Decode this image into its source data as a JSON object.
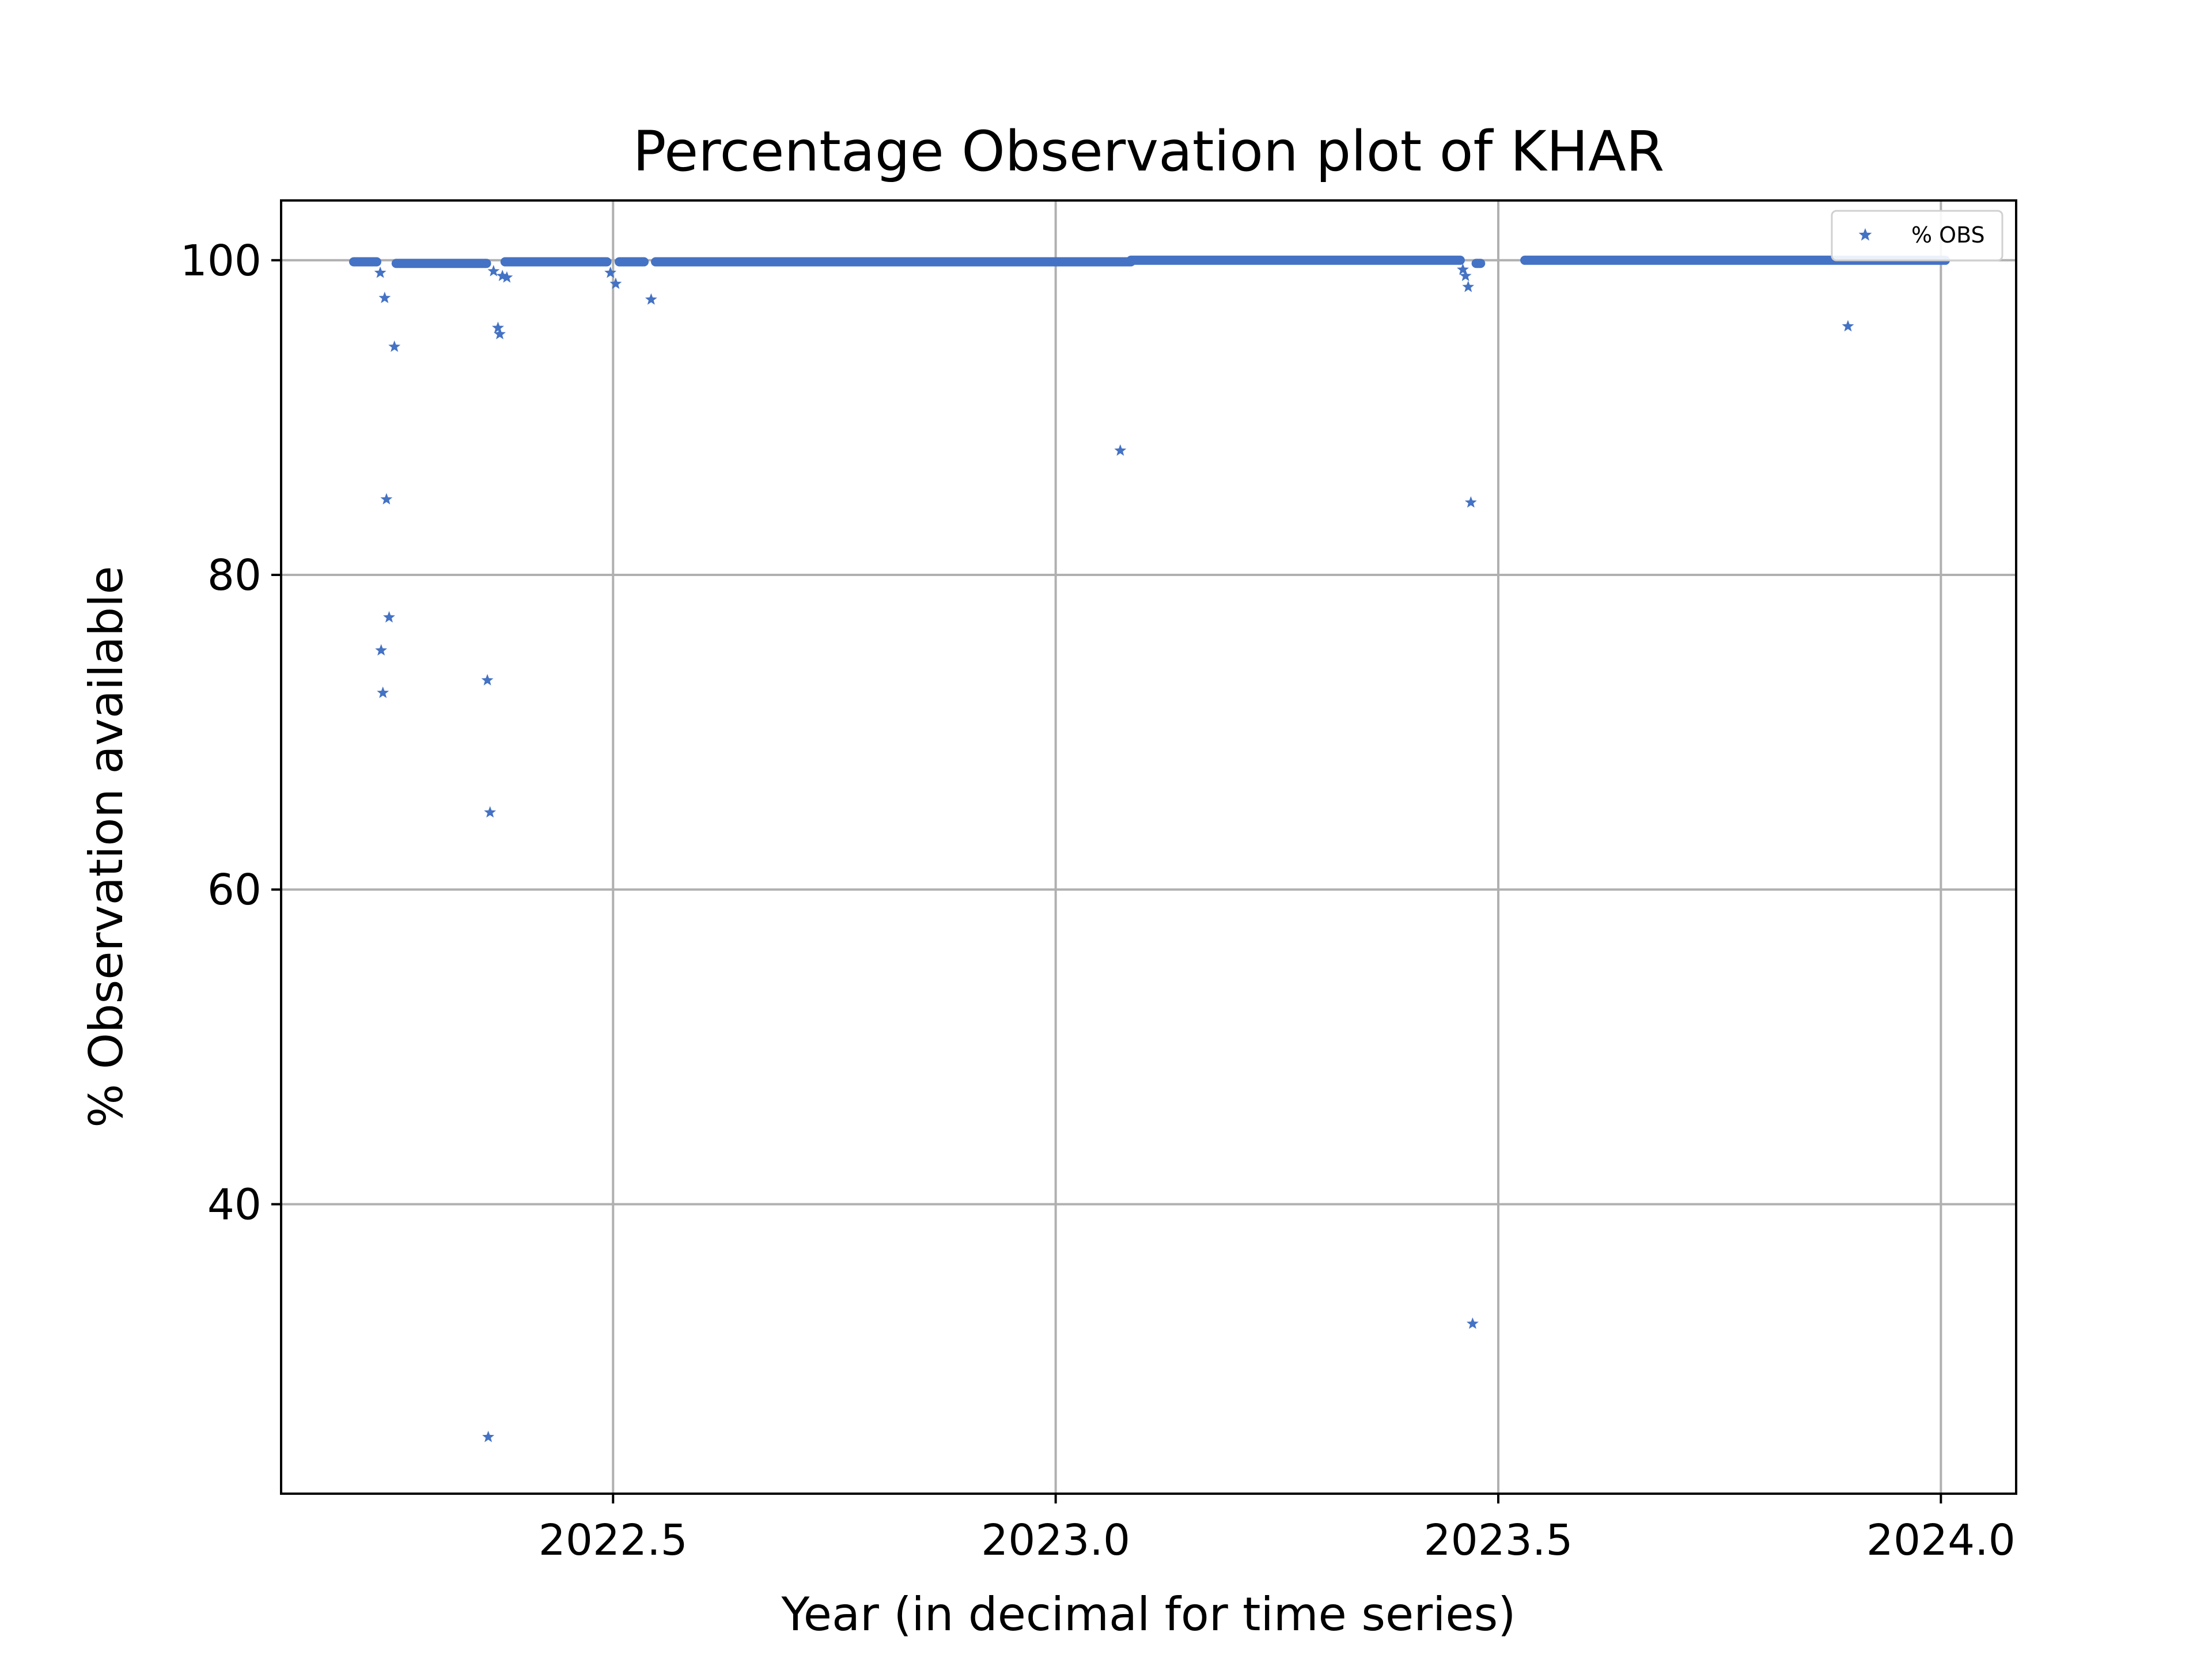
{
  "chart_data": {
    "type": "scatter",
    "title": "Percentage Observation plot of KHAR",
    "xlabel": "Year (in decimal for time series)",
    "ylabel": "% Observation available",
    "xlim": [
      2022.125,
      2024.085
    ],
    "ylim": [
      21.6,
      103.8
    ],
    "x_ticks": [
      2022.5,
      2023.0,
      2023.5,
      2024.0
    ],
    "x_tick_labels": [
      "2022.5",
      "2023.0",
      "2023.5",
      "2024.0"
    ],
    "y_ticks": [
      40,
      60,
      80,
      100
    ],
    "y_tick_labels": [
      "40",
      "60",
      "80",
      "100"
    ],
    "grid": true,
    "legend": {
      "position": "top-right",
      "entries": [
        "% OBS"
      ]
    },
    "series": [
      {
        "name": "% OBS",
        "color": "#4472c4",
        "marker": "star",
        "dense_segments": [
          {
            "x_start": 2022.207,
            "x_end": 2022.233,
            "y": 99.9
          },
          {
            "x_start": 2022.255,
            "x_end": 2022.357,
            "y": 99.8
          },
          {
            "x_start": 2022.378,
            "x_end": 2022.493,
            "y": 99.9
          },
          {
            "x_start": 2022.507,
            "x_end": 2022.535,
            "y": 99.9
          },
          {
            "x_start": 2022.548,
            "x_end": 2023.085,
            "y": 99.9
          },
          {
            "x_start": 2023.085,
            "x_end": 2023.457,
            "y": 100
          },
          {
            "x_start": 2023.475,
            "x_end": 2023.48,
            "y": 99.8
          },
          {
            "x_start": 2023.53,
            "x_end": 2024.005,
            "y": 100
          }
        ],
        "points": [
          {
            "x": 2022.237,
            "y": 99.2
          },
          {
            "x": 2022.242,
            "y": 97.6
          },
          {
            "x": 2022.253,
            "y": 94.5
          },
          {
            "x": 2022.244,
            "y": 84.8
          },
          {
            "x": 2022.247,
            "y": 77.3
          },
          {
            "x": 2022.238,
            "y": 75.2
          },
          {
            "x": 2022.24,
            "y": 72.5
          },
          {
            "x": 2022.358,
            "y": 73.3
          },
          {
            "x": 2022.361,
            "y": 64.9
          },
          {
            "x": 2022.359,
            "y": 25.2
          },
          {
            "x": 2022.365,
            "y": 99.3
          },
          {
            "x": 2022.37,
            "y": 95.7
          },
          {
            "x": 2022.372,
            "y": 95.3
          },
          {
            "x": 2022.375,
            "y": 99.0
          },
          {
            "x": 2022.38,
            "y": 98.9
          },
          {
            "x": 2022.497,
            "y": 99.2
          },
          {
            "x": 2022.503,
            "y": 98.5
          },
          {
            "x": 2022.543,
            "y": 97.5
          },
          {
            "x": 2023.073,
            "y": 87.9
          },
          {
            "x": 2023.46,
            "y": 99.4
          },
          {
            "x": 2023.463,
            "y": 99.0
          },
          {
            "x": 2023.466,
            "y": 98.3
          },
          {
            "x": 2023.469,
            "y": 84.6
          },
          {
            "x": 2023.471,
            "y": 32.4
          },
          {
            "x": 2023.895,
            "y": 95.8
          }
        ]
      }
    ]
  }
}
